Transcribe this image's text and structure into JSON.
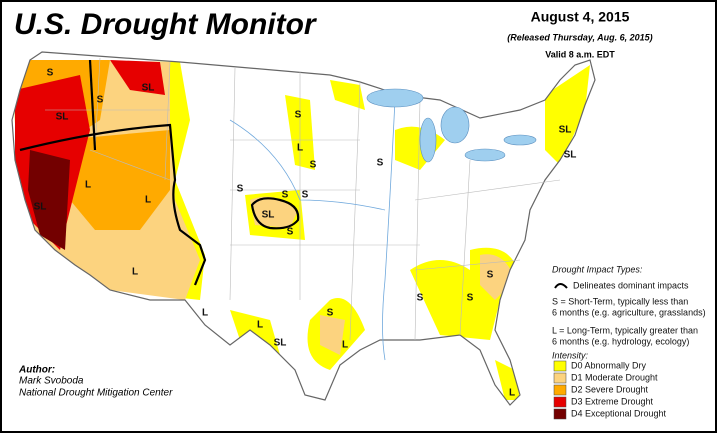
{
  "header": {
    "title": "U.S. Drought Monitor",
    "date": "August 4, 2015",
    "released": "(Released Thursday, Aug. 6, 2015)",
    "valid": "Valid 8 a.m. EDT"
  },
  "map": {
    "labels": [
      "S",
      "SL",
      "SL",
      "S",
      "S",
      "L",
      "S",
      "S",
      "S",
      "S",
      "SL",
      "S",
      "SL",
      "L",
      "L",
      "L",
      "L",
      "L",
      "SL",
      "S",
      "L",
      "S",
      "S",
      "S",
      "SL",
      "SL",
      "S",
      "L"
    ]
  },
  "legend": {
    "impact_title": "Drought Impact Types:",
    "delineates": "Delineates dominant impacts",
    "short_term": [
      "S = Short-Term, typically less than",
      "6 months (e.g. agriculture, grasslands)"
    ],
    "long_term": [
      "L = Long-Term, typically greater than",
      "6 months (e.g. hydrology, ecology)"
    ],
    "intensity_title": "Intensity:",
    "categories": [
      {
        "label": "D0 Abnormally Dry",
        "color": "#ffff00"
      },
      {
        "label": "D1 Moderate Drought",
        "color": "#fcd37f"
      },
      {
        "label": "D2 Severe Drought",
        "color": "#ffaa00"
      },
      {
        "label": "D3 Extreme Drought",
        "color": "#e60000"
      },
      {
        "label": "D4 Exceptional Drought",
        "color": "#730000"
      }
    ]
  },
  "author": {
    "heading": "Author:",
    "name": "Mark Svoboda",
    "org": "National Drought Mitigation Center"
  }
}
